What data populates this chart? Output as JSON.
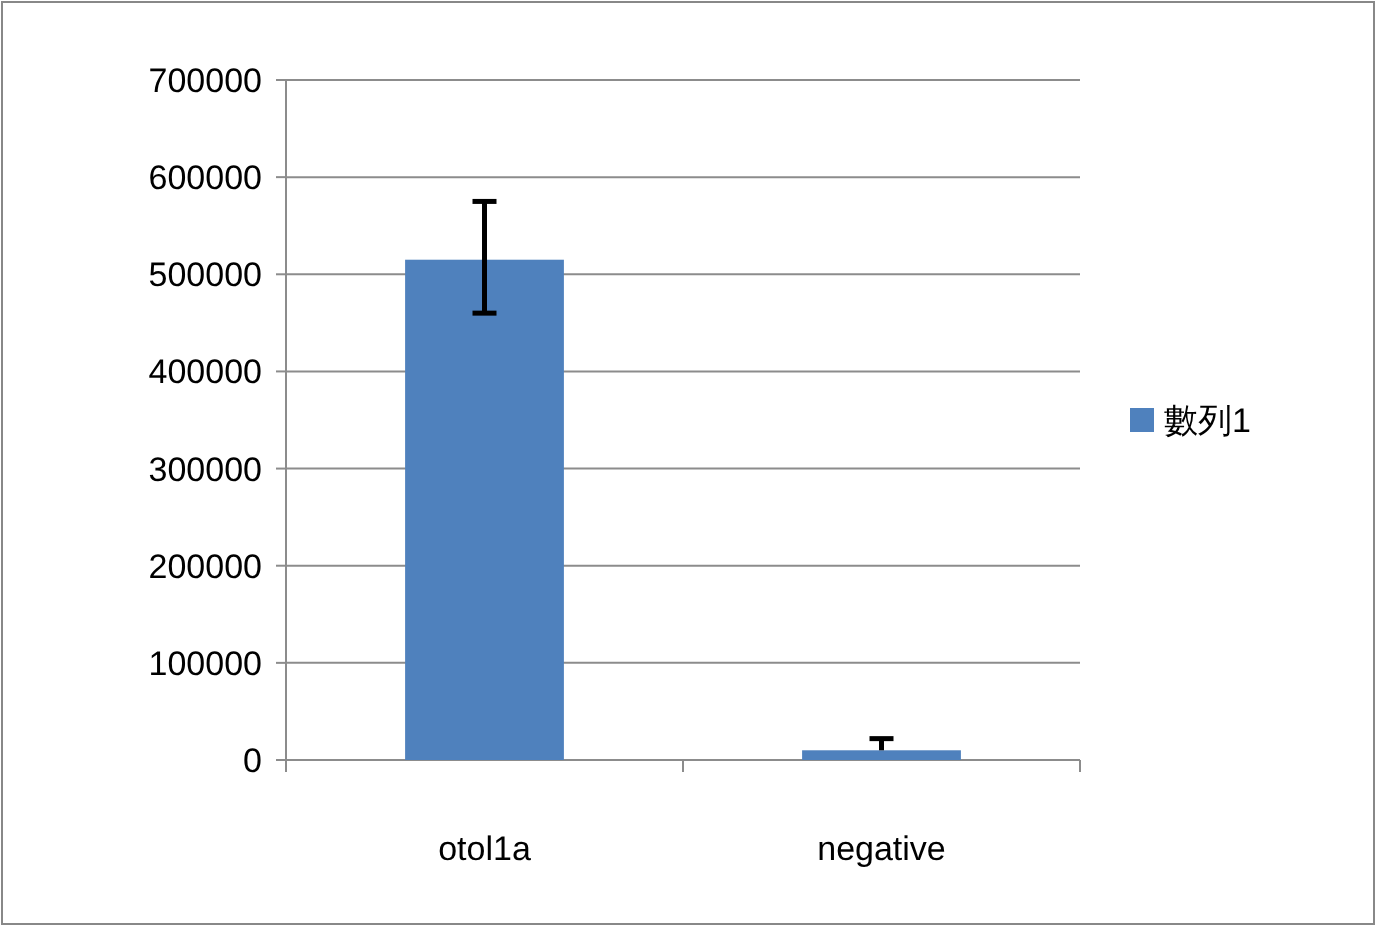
{
  "chart_data": {
    "type": "bar",
    "categories": [
      "otol1a",
      "negative"
    ],
    "series": [
      {
        "name": "數列1",
        "color": "#4f81bd",
        "values": [
          515000,
          10000
        ],
        "errors": [
          [
            460000,
            575000
          ],
          [
            10000,
            22000
          ]
        ]
      }
    ],
    "ylim": [
      0,
      700000
    ],
    "yticks": [
      0,
      100000,
      200000,
      300000,
      400000,
      500000,
      600000,
      700000
    ],
    "grid": "y",
    "legend": "right"
  }
}
